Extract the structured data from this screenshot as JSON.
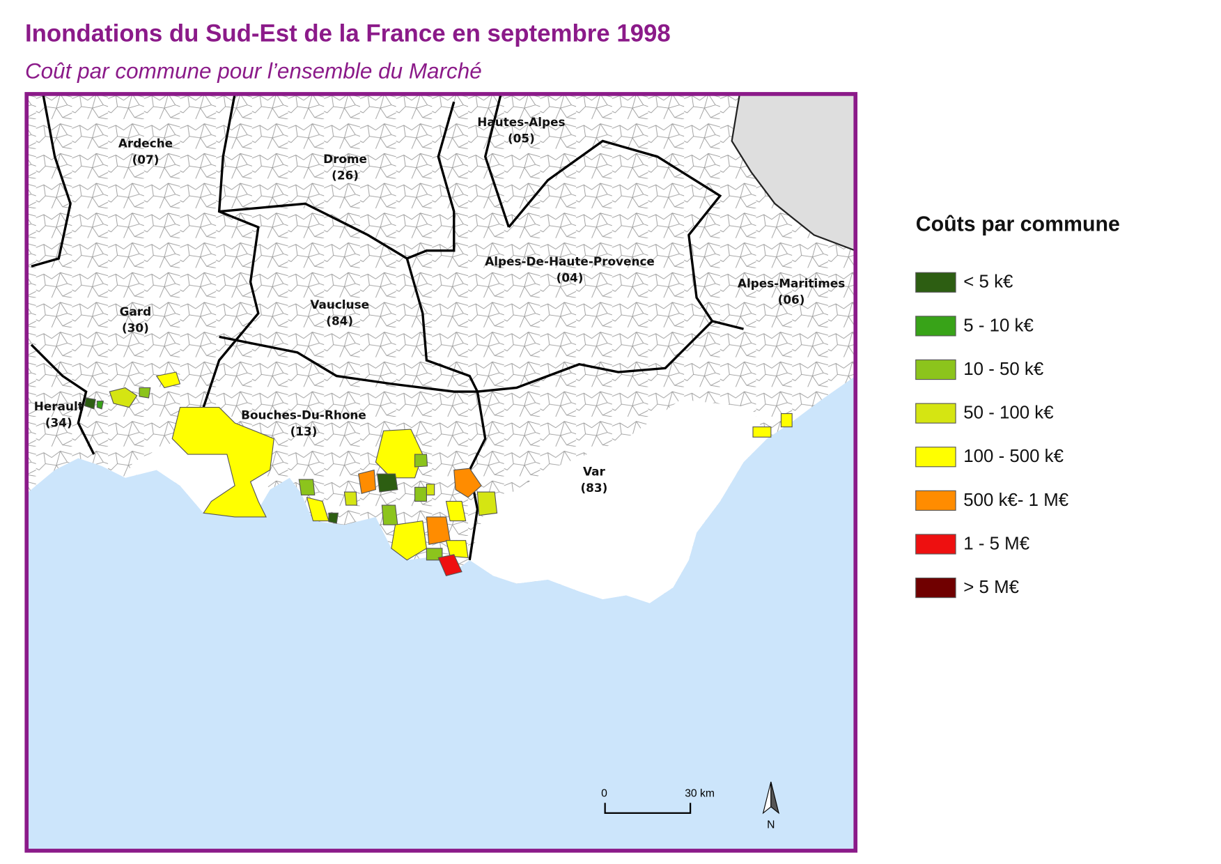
{
  "header": {
    "title": "Inondations du Sud-Est de la France en septembre 1998",
    "subtitle": "Coût par commune pour l’ensemble du Marché"
  },
  "departments": [
    {
      "name": "Ardeche",
      "code": "(07)"
    },
    {
      "name": "Drome",
      "code": "(26)"
    },
    {
      "name": "Hautes-Alpes",
      "code": "(05)"
    },
    {
      "name": "Alpes-De-Haute-Provence",
      "code": "(04)"
    },
    {
      "name": "Alpes-Maritimes",
      "code": "(06)"
    },
    {
      "name": "Gard",
      "code": "(30)"
    },
    {
      "name": "Vaucluse",
      "code": "(84)"
    },
    {
      "name": "Herault",
      "code": "(34)"
    },
    {
      "name": "Bouches-Du-Rhone",
      "code": "(13)"
    },
    {
      "name": "Var",
      "code": "(83)"
    }
  ],
  "legend": {
    "title": "Coûts par commune",
    "items": [
      {
        "label": "< 5 k€",
        "color": "#2d5e12"
      },
      {
        "label": "5 - 10 k€",
        "color": "#38a318"
      },
      {
        "label": "10 - 50 k€",
        "color": "#8cc41c"
      },
      {
        "label": "50 - 100 k€",
        "color": "#d5e512"
      },
      {
        "label": "100 - 500 k€",
        "color": "#ffff00"
      },
      {
        "label": "500 k€- 1 M€",
        "color": "#ff8c00"
      },
      {
        "label": "1 - 5 M€",
        "color": "#ee1010"
      },
      {
        "label": "> 5 M€",
        "color": "#700000"
      }
    ]
  },
  "scale_bar": {
    "start": "0",
    "end": "30 km"
  },
  "north": "N"
}
